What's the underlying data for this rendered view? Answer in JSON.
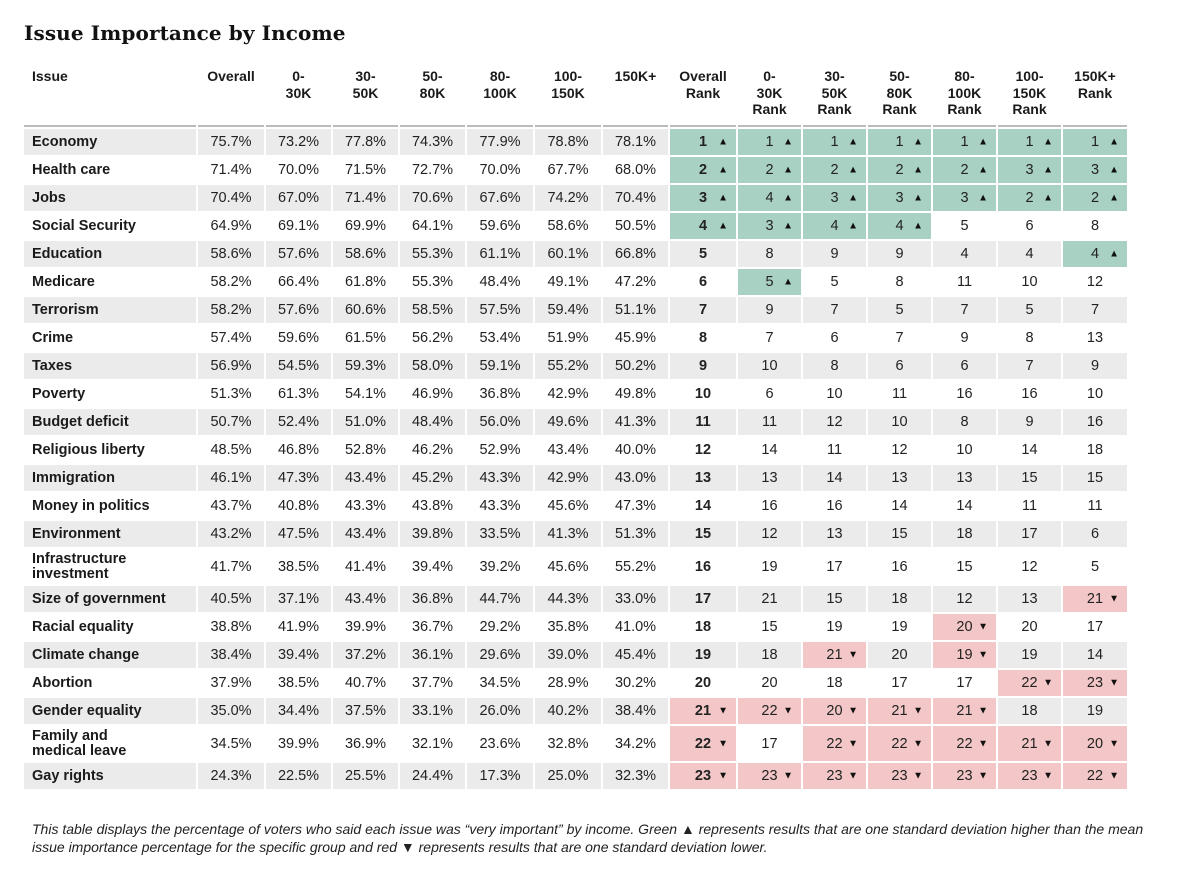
{
  "title": "Issue Importance by Income",
  "headers": [
    "Issue",
    "Overall",
    "0-\n30K",
    "30-\n50K",
    "50-\n80K",
    "80-\n100K",
    "100-\n150K",
    "150K+",
    "Overall\nRank",
    "0-\n30K\nRank",
    "30-\n50K\nRank",
    "50-\n80K\nRank",
    "80-\n100K\nRank",
    "100-\n150K\nRank",
    "150K+\nRank"
  ],
  "colors": {
    "high": "#a9d1c3",
    "low": "#f3c7c7",
    "shade": "#ebebeb"
  },
  "chart_data": {
    "type": "table",
    "title": "Issue Importance by Income",
    "groups": [
      "Overall",
      "0-30K",
      "30-50K",
      "50-80K",
      "80-100K",
      "100-150K",
      "150K+"
    ],
    "rows": [
      {
        "issue": "Economy",
        "pct": [
          "75.7%",
          "73.2%",
          "77.8%",
          "74.3%",
          "77.9%",
          "78.8%",
          "78.1%"
        ],
        "rank": [
          1,
          1,
          1,
          1,
          1,
          1,
          1
        ],
        "flag": [
          "u",
          "u",
          "u",
          "u",
          "u",
          "u",
          "u"
        ]
      },
      {
        "issue": "Health care",
        "pct": [
          "71.4%",
          "70.0%",
          "71.5%",
          "72.7%",
          "70.0%",
          "67.7%",
          "68.0%"
        ],
        "rank": [
          2,
          2,
          2,
          2,
          2,
          3,
          3
        ],
        "flag": [
          "u",
          "u",
          "u",
          "u",
          "u",
          "u",
          "u"
        ]
      },
      {
        "issue": "Jobs",
        "pct": [
          "70.4%",
          "67.0%",
          "71.4%",
          "70.6%",
          "67.6%",
          "74.2%",
          "70.4%"
        ],
        "rank": [
          3,
          4,
          3,
          3,
          3,
          2,
          2
        ],
        "flag": [
          "u",
          "u",
          "u",
          "u",
          "u",
          "u",
          "u"
        ]
      },
      {
        "issue": "Social Security",
        "pct": [
          "64.9%",
          "69.1%",
          "69.9%",
          "64.1%",
          "59.6%",
          "58.6%",
          "50.5%"
        ],
        "rank": [
          4,
          3,
          4,
          4,
          5,
          6,
          8
        ],
        "flag": [
          "u",
          "u",
          "u",
          "u",
          "",
          "",
          ""
        ]
      },
      {
        "issue": "Education",
        "pct": [
          "58.6%",
          "57.6%",
          "58.6%",
          "55.3%",
          "61.1%",
          "60.1%",
          "66.8%"
        ],
        "rank": [
          5,
          8,
          9,
          9,
          4,
          4,
          4
        ],
        "flag": [
          "",
          "",
          "",
          "",
          "",
          "",
          "u"
        ]
      },
      {
        "issue": "Medicare",
        "pct": [
          "58.2%",
          "66.4%",
          "61.8%",
          "55.3%",
          "48.4%",
          "49.1%",
          "47.2%"
        ],
        "rank": [
          6,
          5,
          5,
          8,
          11,
          10,
          12
        ],
        "flag": [
          "",
          "u",
          "",
          "",
          "",
          "",
          ""
        ]
      },
      {
        "issue": "Terrorism",
        "pct": [
          "58.2%",
          "57.6%",
          "60.6%",
          "58.5%",
          "57.5%",
          "59.4%",
          "51.1%"
        ],
        "rank": [
          7,
          9,
          7,
          5,
          7,
          5,
          7
        ],
        "flag": [
          "",
          "",
          "",
          "",
          "",
          "",
          ""
        ]
      },
      {
        "issue": "Crime",
        "pct": [
          "57.4%",
          "59.6%",
          "61.5%",
          "56.2%",
          "53.4%",
          "51.9%",
          "45.9%"
        ],
        "rank": [
          8,
          7,
          6,
          7,
          9,
          8,
          13
        ],
        "flag": [
          "",
          "",
          "",
          "",
          "",
          "",
          ""
        ]
      },
      {
        "issue": "Taxes",
        "pct": [
          "56.9%",
          "54.5%",
          "59.3%",
          "58.0%",
          "59.1%",
          "55.2%",
          "50.2%"
        ],
        "rank": [
          9,
          10,
          8,
          6,
          6,
          7,
          9
        ],
        "flag": [
          "",
          "",
          "",
          "",
          "",
          "",
          ""
        ]
      },
      {
        "issue": "Poverty",
        "pct": [
          "51.3%",
          "61.3%",
          "54.1%",
          "46.9%",
          "36.8%",
          "42.9%",
          "49.8%"
        ],
        "rank": [
          10,
          6,
          10,
          11,
          16,
          16,
          10
        ],
        "flag": [
          "",
          "",
          "",
          "",
          "",
          "",
          ""
        ]
      },
      {
        "issue": "Budget deficit",
        "pct": [
          "50.7%",
          "52.4%",
          "51.0%",
          "48.4%",
          "56.0%",
          "49.6%",
          "41.3%"
        ],
        "rank": [
          11,
          11,
          12,
          10,
          8,
          9,
          16
        ],
        "flag": [
          "",
          "",
          "",
          "",
          "",
          "",
          ""
        ]
      },
      {
        "issue": "Religious liberty",
        "pct": [
          "48.5%",
          "46.8%",
          "52.8%",
          "46.2%",
          "52.9%",
          "43.4%",
          "40.0%"
        ],
        "rank": [
          12,
          14,
          11,
          12,
          10,
          14,
          18
        ],
        "flag": [
          "",
          "",
          "",
          "",
          "",
          "",
          ""
        ]
      },
      {
        "issue": "Immigration",
        "pct": [
          "46.1%",
          "47.3%",
          "43.4%",
          "45.2%",
          "43.3%",
          "42.9%",
          "43.0%"
        ],
        "rank": [
          13,
          13,
          14,
          13,
          13,
          15,
          15
        ],
        "flag": [
          "",
          "",
          "",
          "",
          "",
          "",
          ""
        ]
      },
      {
        "issue": "Money in politics",
        "pct": [
          "43.7%",
          "40.8%",
          "43.3%",
          "43.8%",
          "43.3%",
          "45.6%",
          "47.3%"
        ],
        "rank": [
          14,
          16,
          16,
          14,
          14,
          11,
          11
        ],
        "flag": [
          "",
          "",
          "",
          "",
          "",
          "",
          ""
        ]
      },
      {
        "issue": "Environment",
        "pct": [
          "43.2%",
          "47.5%",
          "43.4%",
          "39.8%",
          "33.5%",
          "41.3%",
          "51.3%"
        ],
        "rank": [
          15,
          12,
          13,
          15,
          18,
          17,
          6
        ],
        "flag": [
          "",
          "",
          "",
          "",
          "",
          "",
          ""
        ]
      },
      {
        "issue": "Infrastructure\ninvestment",
        "pct": [
          "41.7%",
          "38.5%",
          "41.4%",
          "39.4%",
          "39.2%",
          "45.6%",
          "55.2%"
        ],
        "rank": [
          16,
          19,
          17,
          16,
          15,
          12,
          5
        ],
        "flag": [
          "",
          "",
          "",
          "",
          "",
          "",
          ""
        ]
      },
      {
        "issue": "Size of government",
        "pct": [
          "40.5%",
          "37.1%",
          "43.4%",
          "36.8%",
          "44.7%",
          "44.3%",
          "33.0%"
        ],
        "rank": [
          17,
          21,
          15,
          18,
          12,
          13,
          21
        ],
        "flag": [
          "",
          "",
          "",
          "",
          "",
          "",
          "d"
        ]
      },
      {
        "issue": "Racial equality",
        "pct": [
          "38.8%",
          "41.9%",
          "39.9%",
          "36.7%",
          "29.2%",
          "35.8%",
          "41.0%"
        ],
        "rank": [
          18,
          15,
          19,
          19,
          20,
          20,
          17
        ],
        "flag": [
          "",
          "",
          "",
          "",
          "d",
          "",
          ""
        ]
      },
      {
        "issue": "Climate change",
        "pct": [
          "38.4%",
          "39.4%",
          "37.2%",
          "36.1%",
          "29.6%",
          "39.0%",
          "45.4%"
        ],
        "rank": [
          19,
          18,
          21,
          20,
          19,
          19,
          14
        ],
        "flag": [
          "",
          "",
          "d",
          "",
          "d",
          "",
          ""
        ]
      },
      {
        "issue": "Abortion",
        "pct": [
          "37.9%",
          "38.5%",
          "40.7%",
          "37.7%",
          "34.5%",
          "28.9%",
          "30.2%"
        ],
        "rank": [
          20,
          20,
          18,
          17,
          17,
          22,
          23
        ],
        "flag": [
          "",
          "",
          "",
          "",
          "",
          "d",
          "d"
        ]
      },
      {
        "issue": "Gender equality",
        "pct": [
          "35.0%",
          "34.4%",
          "37.5%",
          "33.1%",
          "26.0%",
          "40.2%",
          "38.4%"
        ],
        "rank": [
          21,
          22,
          20,
          21,
          21,
          18,
          19
        ],
        "flag": [
          "d",
          "d",
          "d",
          "d",
          "d",
          "",
          ""
        ]
      },
      {
        "issue": "Family and\nmedical leave",
        "pct": [
          "34.5%",
          "39.9%",
          "36.9%",
          "32.1%",
          "23.6%",
          "32.8%",
          "34.2%"
        ],
        "rank": [
          22,
          17,
          22,
          22,
          22,
          21,
          20
        ],
        "flag": [
          "d",
          "",
          "d",
          "d",
          "d",
          "d",
          "d"
        ]
      },
      {
        "issue": "Gay rights",
        "pct": [
          "24.3%",
          "22.5%",
          "25.5%",
          "24.4%",
          "17.3%",
          "25.0%",
          "32.3%"
        ],
        "rank": [
          23,
          23,
          23,
          23,
          23,
          23,
          22
        ],
        "flag": [
          "d",
          "d",
          "d",
          "d",
          "d",
          "d",
          "d"
        ]
      }
    ]
  },
  "footnote": "This table displays the percentage of voters who said each issue was “very important” by income. Green ▲ represents results that are one standard deviation higher than the mean issue importance percentage for the specific group and red ▼ represents results that are one standard deviation lower."
}
